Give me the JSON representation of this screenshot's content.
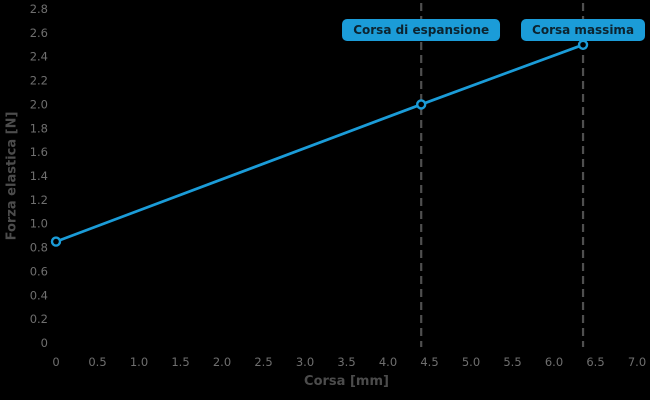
{
  "colors": {
    "background": "#000000",
    "accent": "#1b9cd8",
    "tick_label": "#6f6f6f",
    "axis_title": "#4c4c4c",
    "guide_line": "#4f4f4f",
    "badge_text": "#0c2430",
    "marker_fill": "#000000"
  },
  "chart_data": {
    "type": "line",
    "title": "",
    "xlabel": "Corsa [mm]",
    "ylabel": "Forza elastica [N]",
    "xlim": [
      0,
      7.0
    ],
    "ylim": [
      0,
      2.8
    ],
    "grid": false,
    "legend": "none",
    "x_ticks": [
      "0",
      "0.5",
      "1.0",
      "1.5",
      "2.0",
      "2.5",
      "3.0",
      "3.5",
      "4.0",
      "4.5",
      "5.0",
      "5.5",
      "6.0",
      "6.5",
      "7.0"
    ],
    "y_ticks": [
      "0",
      "0.2",
      "0.4",
      "0.6",
      "0.8",
      "1.0",
      "1.2",
      "1.4",
      "1.6",
      "1.8",
      "2.0",
      "2.2",
      "2.4",
      "2.6",
      "2.8"
    ],
    "series": [
      {
        "name": "Forza elastica",
        "x": [
          0,
          4.4,
          6.35
        ],
        "y": [
          0.85,
          2.0,
          2.5
        ],
        "color": "#1b9cd8",
        "marker": "open-circle"
      }
    ],
    "annotations": [
      {
        "label": "Corsa di espansione",
        "x": 4.4,
        "style": "vertical-dashed-line-with-badge"
      },
      {
        "label": "Corsa massima",
        "x": 6.35,
        "style": "vertical-dashed-line-with-badge"
      }
    ]
  }
}
